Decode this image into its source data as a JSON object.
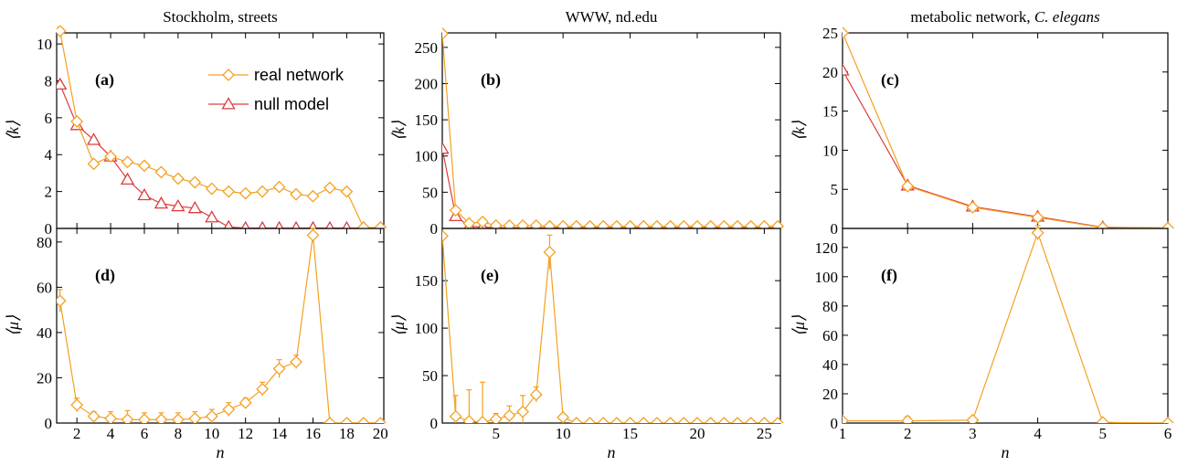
{
  "colors": {
    "real": "#F4A020",
    "null": "#DD3C3C",
    "axis": "#000000"
  },
  "chart_data": [
    {
      "id": "a",
      "type": "line",
      "panel_label": "(a)",
      "title": "Stockholm, streets",
      "title_parts": [
        {
          "text": "Stockholm, streets",
          "italic": false
        }
      ],
      "ylabel": "⟨k⟩",
      "xlabel": "",
      "xlim": [
        0.8,
        20.2
      ],
      "ylim": [
        0,
        10.6
      ],
      "xticks": [
        2,
        4,
        6,
        8,
        10,
        12,
        14,
        16,
        18,
        20
      ],
      "xticklabels": [
        "",
        "",
        "",
        "",
        "",
        "",
        "",
        "",
        "",
        ""
      ],
      "yticks": [
        0,
        2,
        4,
        6,
        8,
        10
      ],
      "yticklabels": [
        "0",
        "2",
        "4",
        "6",
        "8",
        "10"
      ],
      "legend": {
        "placement": "top-right",
        "entries": [
          {
            "label": "real network",
            "series": "real",
            "marker": "diamond"
          },
          {
            "label": "null model",
            "series": "null",
            "marker": "triangle"
          }
        ]
      },
      "series": [
        {
          "key": "real",
          "marker": "diamond",
          "x": [
            1,
            2,
            3,
            4,
            5,
            6,
            7,
            8,
            9,
            10,
            11,
            12,
            13,
            14,
            15,
            16,
            17,
            18,
            19,
            20
          ],
          "y": [
            10.7,
            5.8,
            3.5,
            3.9,
            3.6,
            3.4,
            3.05,
            2.7,
            2.5,
            2.15,
            2.0,
            1.9,
            2.0,
            2.25,
            1.85,
            1.75,
            2.2,
            2.0,
            0.05,
            0.05
          ]
        },
        {
          "key": "null",
          "marker": "triangle",
          "x": [
            1,
            2,
            3,
            4,
            5,
            6,
            7,
            8,
            9,
            10,
            11,
            12,
            13,
            14,
            15,
            16,
            17,
            18,
            19,
            20
          ],
          "y": [
            7.8,
            5.6,
            4.8,
            3.9,
            2.65,
            1.8,
            1.35,
            1.2,
            1.1,
            0.6,
            0.08,
            0.02,
            0.02,
            0.02,
            0.02,
            0.02,
            0.02,
            0.02,
            0.02,
            0.02
          ]
        }
      ]
    },
    {
      "id": "b",
      "type": "line",
      "panel_label": "(b)",
      "title": "WWW, nd.edu",
      "title_parts": [
        {
          "text": "WWW, nd.edu",
          "italic": false
        }
      ],
      "ylabel": "⟨k⟩",
      "xlabel": "",
      "xlim": [
        1,
        26.2
      ],
      "ylim": [
        0,
        270
      ],
      "xticks": [
        5,
        10,
        15,
        20,
        25
      ],
      "xticklabels": [
        "",
        "",
        "",
        "",
        ""
      ],
      "yticks": [
        0,
        50,
        100,
        150,
        200,
        250
      ],
      "yticklabels": [
        "0",
        "50",
        "100",
        "150",
        "200",
        "250"
      ],
      "series": [
        {
          "key": "real",
          "marker": "diamond",
          "x": [
            1,
            2,
            3,
            4,
            5,
            6,
            7,
            8,
            9,
            10,
            11,
            12,
            13,
            14,
            15,
            16,
            17,
            18,
            19,
            20,
            21,
            22,
            23,
            24,
            25,
            26
          ],
          "y": [
            269,
            25,
            7,
            9,
            4,
            4,
            4,
            4,
            3,
            3,
            3,
            3,
            3,
            3,
            3,
            3,
            3,
            3,
            3,
            3,
            3,
            3,
            3,
            3,
            3,
            3
          ]
        },
        {
          "key": "null",
          "marker": "triangle",
          "x": [
            1,
            2,
            3,
            4,
            5,
            6,
            7,
            8,
            9,
            10,
            11,
            12,
            13,
            14,
            15,
            16,
            17,
            18,
            19,
            20,
            21,
            22,
            23,
            24,
            25,
            26
          ],
          "y": [
            110,
            17,
            3,
            2,
            1,
            1,
            1,
            1,
            1,
            1,
            1,
            1,
            1,
            1,
            1,
            1,
            1,
            1,
            1,
            1,
            1,
            1,
            1,
            1,
            1,
            1
          ]
        }
      ]
    },
    {
      "id": "c",
      "type": "line",
      "panel_label": "(c)",
      "title": "metabolic network, C. elegans",
      "title_parts": [
        {
          "text": "metabolic network, ",
          "italic": false
        },
        {
          "text": "C. elegans",
          "italic": true
        }
      ],
      "ylabel": "⟨k⟩",
      "xlabel": "",
      "xlim": [
        1,
        6
      ],
      "ylim": [
        0,
        25
      ],
      "xticks": [
        1,
        2,
        3,
        4,
        5,
        6
      ],
      "xticklabels": [
        "",
        "",
        "",
        "",
        "",
        ""
      ],
      "yticks": [
        0,
        5,
        10,
        15,
        20,
        25
      ],
      "yticklabels": [
        "0",
        "5",
        "10",
        "15",
        "20",
        "25"
      ],
      "series": [
        {
          "key": "real",
          "marker": "diamond",
          "x": [
            1,
            2,
            3,
            4,
            5,
            6
          ],
          "y": [
            25,
            5.4,
            2.7,
            1.4,
            0.1,
            0.05
          ]
        },
        {
          "key": "null",
          "marker": "triangle",
          "x": [
            1,
            2,
            3,
            4,
            5,
            6
          ],
          "y": [
            20.2,
            5.5,
            2.8,
            1.5,
            0.15,
            0.05
          ]
        }
      ]
    },
    {
      "id": "d",
      "type": "line",
      "panel_label": "(d)",
      "title": "",
      "title_parts": [],
      "ylabel": "⟨μ⟩",
      "xlabel": "n",
      "xlim": [
        0.8,
        20.2
      ],
      "ylim": [
        0,
        86
      ],
      "xticks": [
        2,
        4,
        6,
        8,
        10,
        12,
        14,
        16,
        18,
        20
      ],
      "xticklabels": [
        "2",
        "4",
        "6",
        "8",
        "10",
        "12",
        "14",
        "16",
        "18",
        "20"
      ],
      "yticks": [
        0,
        20,
        40,
        60,
        80
      ],
      "yticklabels": [
        "0",
        "20",
        "40",
        "60",
        "80"
      ],
      "series": [
        {
          "key": "real",
          "marker": "diamond",
          "x": [
            1,
            2,
            3,
            4,
            5,
            6,
            7,
            8,
            9,
            10,
            11,
            12,
            13,
            14,
            15,
            16,
            17,
            18,
            19,
            20
          ],
          "y": [
            54,
            8,
            3,
            2,
            1.5,
            1.5,
            1.5,
            1.5,
            2,
            3,
            6,
            9,
            15,
            24,
            27,
            83,
            0,
            0,
            0,
            0
          ],
          "err": [
            5,
            3,
            2,
            3,
            4,
            3,
            3,
            3,
            3,
            3,
            3,
            2,
            3,
            4,
            3,
            3,
            0,
            0,
            0,
            0
          ]
        }
      ]
    },
    {
      "id": "e",
      "type": "line",
      "panel_label": "(e)",
      "title": "",
      "title_parts": [],
      "ylabel": "⟨μ⟩",
      "xlabel": "n",
      "xlim": [
        1,
        26.2
      ],
      "ylim": [
        0,
        205
      ],
      "xticks": [
        5,
        10,
        15,
        20,
        25
      ],
      "xticklabels": [
        "5",
        "10",
        "15",
        "20",
        "25"
      ],
      "yticks": [
        0,
        50,
        100,
        150
      ],
      "yticklabels": [
        "0",
        "50",
        "100",
        "150"
      ],
      "series": [
        {
          "key": "real",
          "marker": "diamond",
          "x": [
            1,
            2,
            3,
            4,
            5,
            6,
            7,
            8,
            9,
            10,
            11,
            12,
            13,
            14,
            15,
            16,
            17,
            18,
            19,
            20,
            21,
            22,
            23,
            24,
            25,
            26
          ],
          "y": [
            197,
            7,
            2,
            1,
            4,
            8,
            12,
            30,
            180,
            6,
            0,
            0,
            0,
            0,
            0,
            0,
            0,
            0,
            0,
            0,
            0,
            0,
            0,
            0,
            0,
            0
          ],
          "err": [
            0,
            22,
            33,
            42,
            6,
            10,
            17,
            8,
            18,
            2,
            0,
            0,
            0,
            0,
            0,
            0,
            0,
            0,
            0,
            0,
            0,
            0,
            0,
            0,
            0,
            0
          ]
        }
      ]
    },
    {
      "id": "f",
      "type": "line",
      "panel_label": "(f)",
      "title": "",
      "title_parts": [],
      "ylabel": "⟨μ⟩",
      "xlabel": "n",
      "xlim": [
        1,
        6
      ],
      "ylim": [
        0,
        133
      ],
      "xticks": [
        1,
        2,
        3,
        4,
        5,
        6
      ],
      "xticklabels": [
        "1",
        "2",
        "3",
        "4",
        "5",
        "6"
      ],
      "yticks": [
        0,
        20,
        40,
        60,
        80,
        100,
        120
      ],
      "yticklabels": [
        "0",
        "20",
        "40",
        "60",
        "80",
        "100",
        "120"
      ],
      "series": [
        {
          "key": "real",
          "marker": "diamond",
          "x": [
            1,
            2,
            3,
            4,
            5,
            6
          ],
          "y": [
            1.5,
            1.5,
            2,
            130,
            0.5,
            0
          ],
          "err": [
            2,
            3,
            0,
            5,
            0,
            0
          ]
        }
      ]
    }
  ]
}
